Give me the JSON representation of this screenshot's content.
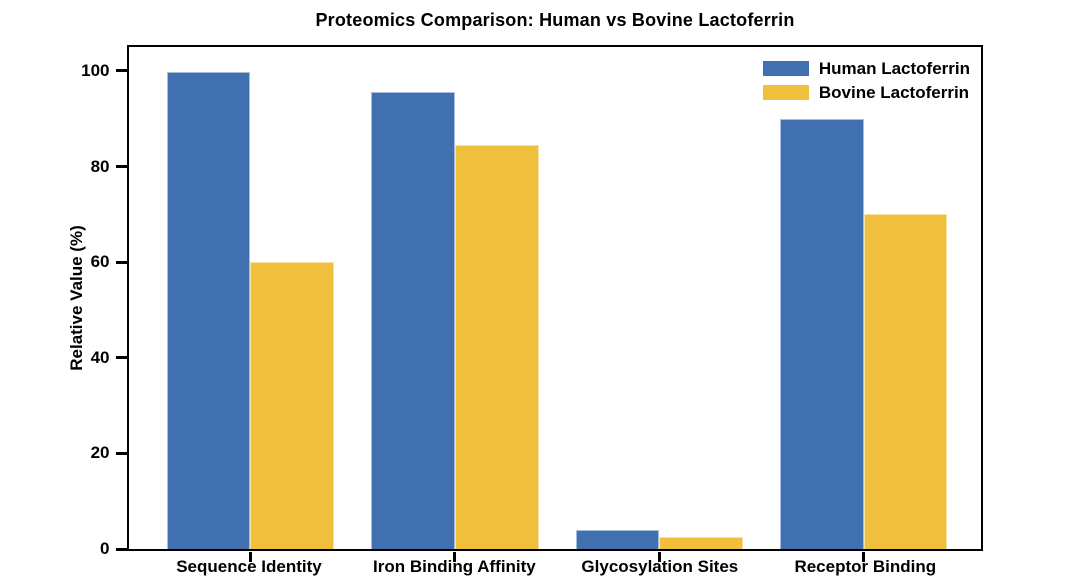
{
  "chart_data": {
    "type": "bar",
    "title": "Proteomics Comparison: Human vs Bovine Lactoferrin",
    "xlabel": "",
    "ylabel": "Relative Value (%)",
    "categories": [
      "Sequence Identity",
      "Iron Binding Affinity",
      "Glycosylation Sites",
      "Receptor Binding"
    ],
    "series": [
      {
        "name": "Human Lactoferrin",
        "color": "#4170B0",
        "values": [
          99.8,
          95.5,
          4,
          90
        ]
      },
      {
        "name": "Bovine Lactoferrin",
        "color": "#F0BF3C",
        "values": [
          60,
          84.5,
          2.5,
          70
        ]
      }
    ],
    "ylim": [
      0,
      105
    ],
    "yticks": [
      0,
      20,
      40,
      60,
      80,
      100
    ],
    "legend_position": "upper right",
    "legend_frame": false,
    "grid": false,
    "colors": {
      "spine": "#000000",
      "text": "#000000",
      "background": "#ffffff"
    }
  }
}
